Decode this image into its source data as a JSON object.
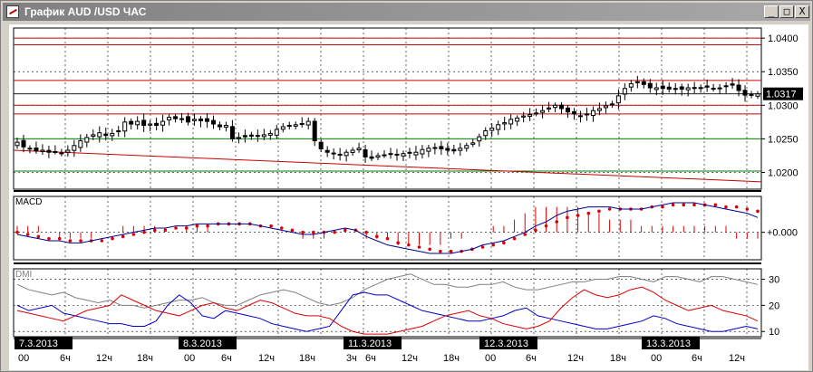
{
  "window": {
    "title": "График AUD /USD ЧАС",
    "minimize_glyph": "_",
    "maximize_glyph": "□",
    "close_glyph": "X",
    "icon": "chart-icon"
  },
  "colors": {
    "up_candle": "#ffffff",
    "down_candle": "#000000",
    "resistance": "#cc0000",
    "support": "#008000",
    "macd_line": "#00008b",
    "macd_signal": "#dd0000",
    "macd_hist": "#dd0000",
    "adx": "#808080",
    "di_plus": "#0000cc",
    "di_minus": "#dd0000"
  },
  "chart_data": [
    {
      "type": "candlestick",
      "timeframe": "ЧАС",
      "ylim": [
        1.0175,
        1.0415
      ],
      "y_ticks": [
        "1.0400",
        "1.0350",
        "1.0300",
        "1.0250",
        "1.0200"
      ],
      "y_tick_values": [
        1.04,
        1.035,
        1.03,
        1.025,
        1.02
      ],
      "last_price_label": "1.0317",
      "last_price": 1.0317,
      "grid": true,
      "closes": [
        1.0245,
        1.0238,
        1.0236,
        1.0232,
        1.0233,
        1.023,
        1.0231,
        1.0229,
        1.0233,
        1.024,
        1.0247,
        1.0252,
        1.0256,
        1.0259,
        1.0255,
        1.0258,
        1.0262,
        1.0275,
        1.0272,
        1.0276,
        1.027,
        1.0272,
        1.027,
        1.0276,
        1.0282,
        1.028,
        1.028,
        1.0275,
        1.0279,
        1.0277,
        1.0276,
        1.0272,
        1.0268,
        1.027,
        1.025,
        1.0252,
        1.0253,
        1.0254,
        1.0255,
        1.0256,
        1.0258,
        1.0264,
        1.0268,
        1.027,
        1.0271,
        1.0272,
        1.0276,
        1.0247,
        1.0235,
        1.023,
        1.0228,
        1.0227,
        1.023,
        1.0233,
        1.0236,
        1.0223,
        1.0221,
        1.0225,
        1.0226,
        1.0228,
        1.0227,
        1.0228,
        1.0229,
        1.023,
        1.0234,
        1.0236,
        1.0237,
        1.0235,
        1.0233,
        1.0232,
        1.0236,
        1.024,
        1.0244,
        1.0253,
        1.0262,
        1.0266,
        1.0271,
        1.0274,
        1.0279,
        1.0281,
        1.0284,
        1.0286,
        1.0288,
        1.0292,
        1.0296,
        1.03,
        1.0295,
        1.029,
        1.0287,
        1.0284,
        1.0287,
        1.0292,
        1.0295,
        1.0299,
        1.0302,
        1.0314,
        1.0325,
        1.0332,
        1.0335,
        1.0331,
        1.0326,
        1.0326,
        1.0325,
        1.0324,
        1.0325,
        1.0324,
        1.0326,
        1.0325,
        1.0326,
        1.0327,
        1.0325,
        1.0325,
        1.0329,
        1.033,
        1.0322,
        1.0315,
        1.0316,
        1.0317
      ],
      "levels": [
        {
          "value": 1.04,
          "kind": "resistance"
        },
        {
          "value": 1.039,
          "kind": "resistance"
        },
        {
          "value": 1.0337,
          "kind": "resistance"
        },
        {
          "value": 1.03,
          "kind": "resistance"
        },
        {
          "value": 1.0287,
          "kind": "resistance"
        },
        {
          "value": 1.025,
          "kind": "support"
        },
        {
          "value": 1.0202,
          "kind": "support"
        }
      ],
      "trend_line": {
        "start": 1.0233,
        "end": 1.0186
      }
    },
    {
      "type": "line",
      "title": "MACD",
      "ylim": [
        -0.0013,
        0.0017
      ],
      "y_ticks": [
        "+0.000"
      ],
      "y_tick_values": [
        0
      ],
      "grid": true,
      "series": [
        {
          "role": "macd",
          "values": [
            -0.0001,
            -0.0002,
            -0.0003,
            -0.0004,
            -0.0004,
            -0.0005,
            -0.0005,
            -0.0004,
            -0.0003,
            -0.0002,
            -0.0001,
            0.0,
            0.0001,
            0.0002,
            0.0002,
            0.0003,
            0.0003,
            0.0004,
            0.0004,
            0.0004,
            0.0004,
            0.0004,
            0.0004,
            0.0003,
            0.0002,
            0.0001,
            0.0,
            -0.0001,
            -0.0001,
            0.0,
            0.0001,
            0.0002,
            0.0001,
            -0.0002,
            -0.0004,
            -0.0006,
            -0.0007,
            -0.0008,
            -0.0009,
            -0.001,
            -0.001,
            -0.001,
            -0.0009,
            -0.0008,
            -0.0006,
            -0.0005,
            -0.0004,
            -0.0002,
            0.0,
            0.0003,
            0.0005,
            0.0008,
            0.001,
            0.0011,
            0.0012,
            0.0012,
            0.0012,
            0.0011,
            0.0011,
            0.0011,
            0.0012,
            0.0013,
            0.0014,
            0.0014,
            0.0014,
            0.0013,
            0.0012,
            0.0011,
            0.001,
            0.0009,
            0.0007
          ]
        },
        {
          "role": "signal",
          "values": [
            0.0,
            -0.0001,
            -0.0002,
            -0.0003,
            -0.0003,
            -0.0004,
            -0.0004,
            -0.0004,
            -0.0004,
            -0.0003,
            -0.0002,
            -0.0001,
            0.0,
            0.0001,
            0.0001,
            0.0002,
            0.0002,
            0.0003,
            0.0003,
            0.0004,
            0.0004,
            0.0004,
            0.0004,
            0.0003,
            0.0003,
            0.0002,
            0.0001,
            0.0,
            0.0,
            0.0,
            0.0,
            0.0001,
            0.0001,
            0.0,
            -0.0002,
            -0.0003,
            -0.0005,
            -0.0006,
            -0.0007,
            -0.0008,
            -0.0009,
            -0.0009,
            -0.0009,
            -0.0008,
            -0.0007,
            -0.0006,
            -0.0005,
            -0.0003,
            -0.0001,
            0.0001,
            0.0003,
            0.0005,
            0.0007,
            0.0008,
            0.0009,
            0.001,
            0.0011,
            0.0011,
            0.0011,
            0.0011,
            0.0012,
            0.0012,
            0.0013,
            0.0013,
            0.0013,
            0.0013,
            0.0013,
            0.0012,
            0.0012,
            0.0011,
            0.001
          ]
        },
        {
          "role": "histogram",
          "values": [
            0.0001,
            0.0001,
            0.0001,
            0.0,
            -0.0001,
            -0.0001,
            -0.0001,
            -0.0001,
            0.0,
            0.0,
            0.0001,
            0.0001,
            0.0001,
            0.0001,
            0.0,
            0.0,
            0.0001,
            0.0001,
            0.0001,
            0.0,
            0.0,
            0.0,
            0.0,
            0.0,
            0.0,
            0.0,
            0.0,
            -0.0001,
            -0.0001,
            -0.0001,
            0.0,
            0.0,
            0.0,
            -0.0001,
            -0.0001,
            -0.0001,
            -0.0002,
            -0.0002,
            -0.0002,
            -0.0002,
            -0.0002,
            -0.0001,
            -0.0001,
            0.0,
            0.0,
            0.0001,
            0.0001,
            0.0002,
            0.0003,
            0.0004,
            0.0004,
            0.0004,
            0.0004,
            0.0004,
            0.0003,
            0.0003,
            0.0002,
            0.0002,
            0.0002,
            0.0001,
            0.0001,
            0.0001,
            0.0001,
            0.0001,
            0.0001,
            0.0001,
            0.0001,
            0.0001,
            -0.0001,
            -0.0001,
            -0.0001
          ]
        }
      ]
    },
    {
      "type": "line",
      "title": "DMI",
      "ylim": [
        8,
        34
      ],
      "y_ticks": [
        "30",
        "20",
        "10"
      ],
      "y_tick_values": [
        30,
        20,
        10
      ],
      "grid": true,
      "series": [
        {
          "role": "adx",
          "values": [
            28,
            26,
            25,
            24,
            25,
            23,
            22,
            21,
            22,
            20,
            20,
            19,
            20,
            21,
            22,
            22,
            23,
            21,
            20,
            20,
            22,
            24,
            25,
            26,
            25,
            23,
            21,
            20,
            21,
            23,
            26,
            28,
            30,
            31,
            32,
            30,
            28,
            28,
            27,
            27,
            28,
            28,
            29,
            27,
            26,
            26,
            27,
            28,
            29,
            29,
            30,
            30,
            31,
            31,
            30,
            29,
            31,
            31,
            30,
            29,
            31,
            31,
            30,
            29,
            28
          ]
        },
        {
          "role": "di_plus",
          "values": [
            20,
            18,
            19,
            20,
            17,
            16,
            15,
            14,
            13,
            13,
            12,
            12,
            14,
            20,
            24,
            21,
            16,
            15,
            18,
            17,
            16,
            15,
            13,
            12,
            11,
            10,
            11,
            12,
            18,
            24,
            25,
            24,
            24,
            22,
            20,
            18,
            17,
            16,
            15,
            14,
            14,
            15,
            16,
            18,
            19,
            16,
            15,
            14,
            13,
            12,
            11,
            11,
            12,
            13,
            14,
            16,
            15,
            13,
            12,
            11,
            10,
            10,
            11,
            12,
            11
          ]
        },
        {
          "role": "di_minus",
          "values": [
            18,
            17,
            16,
            15,
            14,
            16,
            18,
            19,
            20,
            24,
            22,
            20,
            18,
            17,
            16,
            18,
            20,
            21,
            19,
            18,
            20,
            22,
            21,
            19,
            17,
            16,
            16,
            15,
            12,
            10,
            9,
            9,
            9,
            10,
            11,
            12,
            14,
            16,
            17,
            18,
            16,
            15,
            13,
            12,
            11,
            12,
            14,
            19,
            23,
            26,
            24,
            23,
            24,
            26,
            27,
            25,
            22,
            20,
            18,
            19,
            20,
            18,
            17,
            16,
            14
          ]
        }
      ]
    }
  ],
  "x_axis": {
    "date_labels": [
      "7.3.2013",
      "8.3.2013",
      "11.3.2013",
      "12.3.2013",
      "13.3.2013"
    ],
    "hour_labels": [
      "00",
      "6ч",
      "12ч",
      "18ч",
      "00",
      "6ч",
      "12ч",
      "18ч",
      "3ч",
      "6ч",
      "12ч",
      "18ч",
      "00",
      "6ч",
      "12ч",
      "18ч",
      "00",
      "6ч",
      "12ч"
    ]
  }
}
